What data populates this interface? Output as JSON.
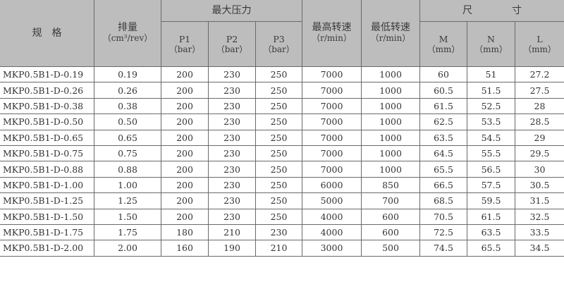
{
  "header": {
    "spec": "规　格",
    "displacement": "排量",
    "displacement_unit": "（cm³/rev）",
    "max_pressure": "最大压力",
    "p1": "P1",
    "p2": "P2",
    "p3": "P3",
    "bar_unit": "（bar）",
    "max_speed": "最高转速",
    "min_speed": "最低转速",
    "speed_unit": "（r/min）",
    "dimensions": "尺　　　　寸",
    "m": "M",
    "n": "N",
    "l": "L",
    "mm_unit": "（mm）"
  },
  "rows": [
    [
      "MKP0.5B1-D-0.19",
      "0.19",
      "200",
      "230",
      "250",
      "7000",
      "1000",
      "60",
      "51",
      "27.2"
    ],
    [
      "MKP0.5B1-D-0.26",
      "0.26",
      "200",
      "230",
      "250",
      "7000",
      "1000",
      "60.5",
      "51.5",
      "27.5"
    ],
    [
      "MKP0.5B1-D-0.38",
      "0.38",
      "200",
      "230",
      "250",
      "7000",
      "1000",
      "61.5",
      "52.5",
      "28"
    ],
    [
      "MKP0.5B1-D-0.50",
      "0.50",
      "200",
      "230",
      "250",
      "7000",
      "1000",
      "62.5",
      "53.5",
      "28.5"
    ],
    [
      "MKP0.5B1-D-0.65",
      "0.65",
      "200",
      "230",
      "250",
      "7000",
      "1000",
      "63.5",
      "54.5",
      "29"
    ],
    [
      "MKP0.5B1-D-0.75",
      "0.75",
      "200",
      "230",
      "250",
      "7000",
      "1000",
      "64.5",
      "55.5",
      "29.5"
    ],
    [
      "MKP0.5B1-D-0.88",
      "0.88",
      "200",
      "230",
      "250",
      "7000",
      "1000",
      "65.5",
      "56.5",
      "30"
    ],
    [
      "MKP0.5B1-D-1.00",
      "1.00",
      "200",
      "230",
      "250",
      "6000",
      "850",
      "66.5",
      "57.5",
      "30.5"
    ],
    [
      "MKP0.5B1-D-1.25",
      "1.25",
      "200",
      "230",
      "250",
      "5000",
      "700",
      "68.5",
      "59.5",
      "31.5"
    ],
    [
      "MKP0.5B1-D-1.50",
      "1.50",
      "200",
      "230",
      "250",
      "4000",
      "600",
      "70.5",
      "61.5",
      "32.5"
    ],
    [
      "MKP0.5B1-D-1.75",
      "1.75",
      "180",
      "210",
      "230",
      "4000",
      "600",
      "72.5",
      "63.5",
      "33.5"
    ],
    [
      "MKP0.5B1-D-2.00",
      "2.00",
      "160",
      "190",
      "210",
      "3000",
      "500",
      "74.5",
      "65.5",
      "34.5"
    ]
  ]
}
